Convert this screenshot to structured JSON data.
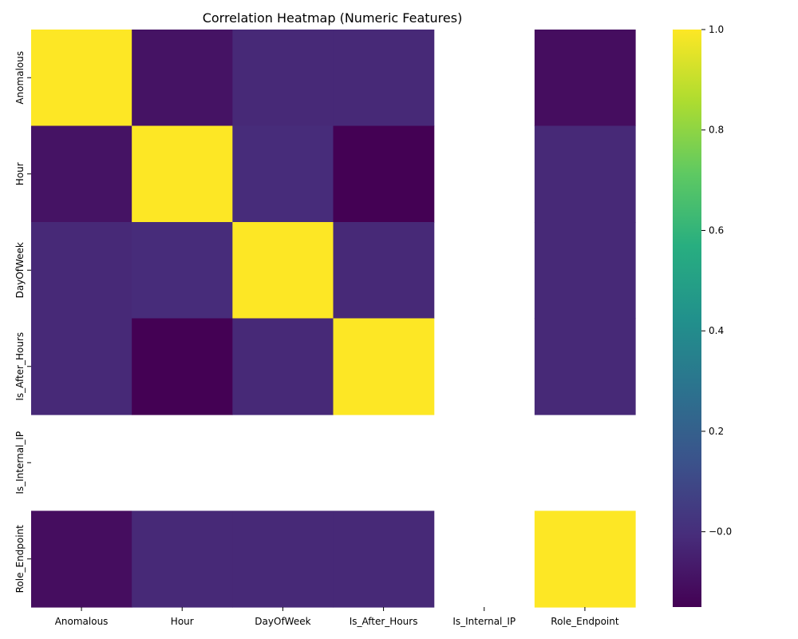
{
  "chart_data": {
    "type": "heatmap",
    "title": "Correlation Heatmap (Numeric Features)",
    "colormap": "viridis",
    "x_categories": [
      "Anomalous",
      "Hour",
      "DayOfWeek",
      "Is_After_Hours",
      "Is_Internal_IP",
      "Role_Endpoint"
    ],
    "y_categories": [
      "Anomalous",
      "Hour",
      "DayOfWeek",
      "Is_After_Hours",
      "Is_Internal_IP",
      "Role_Endpoint"
    ],
    "values": [
      [
        1.0,
        -0.09,
        -0.02,
        -0.02,
        null,
        -0.11
      ],
      [
        -0.09,
        1.0,
        -0.01,
        -0.15,
        null,
        -0.02
      ],
      [
        -0.02,
        -0.01,
        1.0,
        -0.02,
        null,
        -0.02
      ],
      [
        -0.02,
        -0.15,
        -0.02,
        1.0,
        null,
        -0.02
      ],
      [
        null,
        null,
        null,
        null,
        null,
        null
      ],
      [
        -0.11,
        -0.02,
        -0.02,
        -0.02,
        null,
        1.0
      ]
    ],
    "colorbar": {
      "range": [
        -0.15,
        1.0
      ],
      "ticks": [
        -0.0,
        0.2,
        0.4,
        0.6,
        0.8,
        1.0
      ],
      "tick_labels": [
        "−0.0",
        "0.2",
        "0.4",
        "0.6",
        "0.8",
        "1.0"
      ]
    }
  }
}
